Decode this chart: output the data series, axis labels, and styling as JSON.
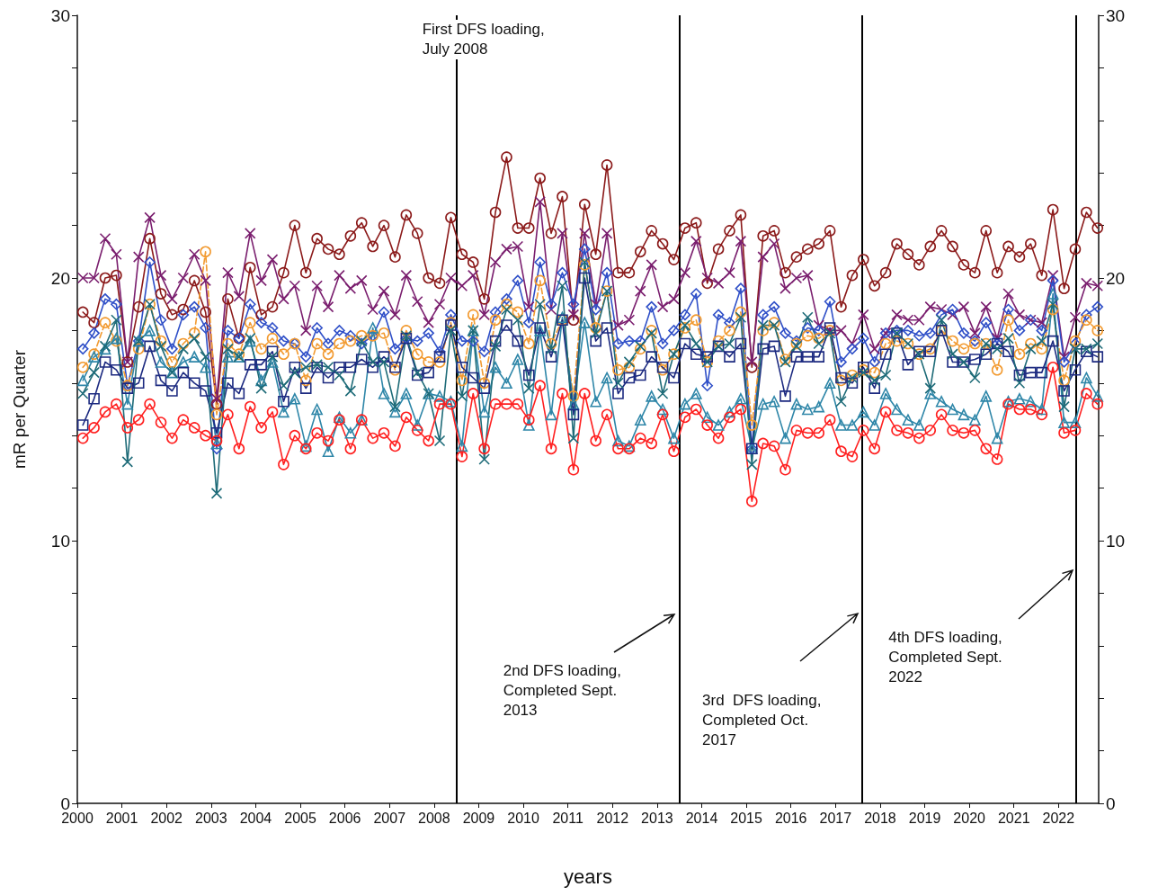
{
  "chart_data": {
    "type": "line",
    "xlabel": "years",
    "ylabel": "mR per Quarter",
    "x": [
      2000.125,
      2000.375,
      2000.625,
      2000.875,
      2001.125,
      2001.375,
      2001.625,
      2001.875,
      2002.125,
      2002.375,
      2002.625,
      2002.875,
      2003.125,
      2003.375,
      2003.625,
      2003.875,
      2004.125,
      2004.375,
      2004.625,
      2004.875,
      2005.125,
      2005.375,
      2005.625,
      2005.875,
      2006.125,
      2006.375,
      2006.625,
      2006.875,
      2007.125,
      2007.375,
      2007.625,
      2007.875,
      2008.125,
      2008.375,
      2008.625,
      2008.875,
      2009.125,
      2009.375,
      2009.625,
      2009.875,
      2010.125,
      2010.375,
      2010.625,
      2010.875,
      2011.125,
      2011.375,
      2011.625,
      2011.875,
      2012.125,
      2012.375,
      2012.625,
      2012.875,
      2013.125,
      2013.375,
      2013.625,
      2013.875,
      2014.125,
      2014.375,
      2014.625,
      2014.875,
      2015.125,
      2015.375,
      2015.625,
      2015.875,
      2016.125,
      2016.375,
      2016.625,
      2016.875,
      2017.125,
      2017.375,
      2017.625,
      2017.875,
      2018.125,
      2018.375,
      2018.625,
      2018.875,
      2019.125,
      2019.375,
      2019.625,
      2019.875,
      2020.125,
      2020.375,
      2020.625,
      2020.875,
      2021.125,
      2021.375,
      2021.625,
      2021.875,
      2022.125,
      2022.375,
      2022.625,
      2022.875
    ],
    "xlim": [
      2000,
      2022.9
    ],
    "xticks": [
      2000,
      2001,
      2002,
      2003,
      2004,
      2005,
      2006,
      2007,
      2008,
      2009,
      2010,
      2011,
      2012,
      2013,
      2014,
      2015,
      2016,
      2017,
      2018,
      2019,
      2020,
      2021,
      2022
    ],
    "ylim": [
      0,
      30
    ],
    "yticks": [
      0,
      {
        "value": 2,
        "label": null
      },
      {
        "value": 4,
        "label": null
      },
      {
        "value": 6,
        "label": null
      },
      {
        "value": 8,
        "label": null
      },
      10,
      {
        "value": 12,
        "label": null
      },
      {
        "value": 14,
        "label": null
      },
      {
        "value": 16,
        "label": null
      },
      {
        "value": 18,
        "label": null
      },
      20,
      {
        "value": 22,
        "label": null
      },
      {
        "value": 24,
        "label": null
      },
      {
        "value": 26,
        "label": null
      },
      {
        "value": 28,
        "label": null
      },
      30
    ],
    "y2lim": [
      0,
      30
    ],
    "y2ticks": [
      0,
      {
        "value": 2,
        "label": null
      },
      {
        "value": 4,
        "label": null
      },
      {
        "value": 6,
        "label": null
      },
      {
        "value": 8,
        "label": null
      },
      10,
      {
        "value": 12,
        "label": null
      },
      {
        "value": 14,
        "label": null
      },
      {
        "value": 16,
        "label": null
      },
      {
        "value": 18,
        "label": null
      },
      20,
      {
        "value": 22,
        "label": null
      },
      {
        "value": 24,
        "label": null
      },
      {
        "value": 26,
        "label": null
      },
      {
        "value": 28,
        "label": null
      },
      30
    ],
    "series": [
      {
        "color": "#8b1a1a",
        "marker": "circle",
        "values": [
          18.7,
          18.3,
          20.0,
          20.1,
          16.8,
          18.9,
          21.5,
          19.4,
          18.6,
          18.8,
          19.9,
          18.7,
          15.2,
          19.2,
          17.7,
          20.4,
          18.6,
          18.9,
          20.2,
          22.0,
          20.2,
          21.5,
          21.1,
          20.9,
          21.6,
          22.1,
          21.2,
          22.0,
          20.8,
          22.4,
          21.7,
          20.0,
          19.8,
          22.3,
          20.9,
          20.6,
          19.2,
          22.5,
          24.6,
          21.9,
          21.9,
          23.8,
          21.7,
          23.1,
          18.4,
          22.8,
          20.9,
          24.3,
          20.2,
          20.2,
          21.0,
          21.8,
          21.3,
          20.7,
          21.9,
          22.1,
          19.8,
          21.1,
          21.8,
          22.4,
          16.6,
          21.6,
          21.8,
          20.2,
          20.8,
          21.1,
          21.3,
          21.8,
          18.9,
          20.1,
          20.7,
          19.7,
          20.2,
          21.3,
          20.9,
          20.5,
          21.2,
          21.8,
          21.2,
          20.5,
          20.2,
          21.8,
          20.2,
          21.2,
          20.8,
          21.3,
          20.1,
          22.6,
          19.6,
          21.1,
          22.5,
          21.9
        ]
      },
      {
        "color": "#7a1e6e",
        "marker": "cross",
        "values": [
          20.0,
          20.0,
          21.5,
          20.9,
          16.8,
          20.8,
          22.3,
          20.1,
          19.2,
          20.0,
          20.9,
          19.9,
          15.4,
          20.2,
          19.3,
          21.7,
          19.9,
          20.7,
          19.2,
          19.7,
          18.0,
          19.7,
          18.9,
          20.1,
          19.6,
          19.9,
          18.8,
          19.5,
          18.6,
          20.1,
          19.1,
          18.3,
          19.0,
          20.0,
          19.7,
          20.1,
          18.6,
          20.6,
          21.1,
          21.2,
          18.9,
          22.9,
          18.8,
          21.7,
          18.6,
          21.7,
          19.0,
          21.7,
          18.2,
          18.4,
          19.5,
          20.5,
          18.9,
          19.2,
          20.2,
          21.4,
          20.0,
          19.8,
          20.2,
          21.4,
          16.8,
          20.8,
          21.3,
          19.6,
          20.0,
          20.1,
          18.2,
          18.0,
          18.0,
          17.5,
          18.6,
          17.3,
          17.9,
          18.6,
          18.4,
          18.4,
          18.9,
          18.8,
          18.6,
          18.9,
          17.9,
          18.9,
          17.7,
          19.4,
          18.6,
          18.4,
          18.3,
          20.1,
          17.0,
          18.5,
          19.8,
          19.7
        ]
      },
      {
        "color": "#3050c8",
        "marker": "diamond",
        "values": [
          17.3,
          17.9,
          19.2,
          19.0,
          15.9,
          17.6,
          20.6,
          18.4,
          17.3,
          18.6,
          18.9,
          18.1,
          13.5,
          18.0,
          17.7,
          19.0,
          18.3,
          18.1,
          17.6,
          17.5,
          17.0,
          18.1,
          17.5,
          18.0,
          17.8,
          17.5,
          17.8,
          18.7,
          17.3,
          17.7,
          17.6,
          17.9,
          17.2,
          18.6,
          17.6,
          17.6,
          17.2,
          18.7,
          19.2,
          19.9,
          18.3,
          20.6,
          19.0,
          20.2,
          19.0,
          21.1,
          18.8,
          20.2,
          17.5,
          17.6,
          17.6,
          18.9,
          17.5,
          18.0,
          18.6,
          19.4,
          15.9,
          18.6,
          18.3,
          19.6,
          13.5,
          18.6,
          18.9,
          17.9,
          17.6,
          18.1,
          18.0,
          19.1,
          16.8,
          17.3,
          17.7,
          16.8,
          17.9,
          18.0,
          18.0,
          17.8,
          17.9,
          18.6,
          18.8,
          17.9,
          17.6,
          18.3,
          17.5,
          18.8,
          18.0,
          18.4,
          18.0,
          19.9,
          16.8,
          17.5,
          18.6,
          18.9
        ]
      },
      {
        "color": "#f29a30",
        "marker": "circle",
        "line_style": "dashed",
        "values": [
          16.6,
          17.1,
          18.3,
          17.6,
          15.9,
          17.3,
          19.0,
          17.6,
          16.8,
          17.5,
          17.9,
          21.0,
          14.8,
          17.5,
          17.1,
          18.3,
          17.3,
          17.7,
          17.1,
          17.5,
          16.1,
          17.5,
          17.1,
          17.5,
          17.6,
          17.8,
          17.8,
          17.9,
          16.5,
          18.0,
          17.1,
          16.8,
          16.8,
          18.3,
          16.1,
          18.6,
          16.0,
          18.4,
          19.0,
          18.7,
          17.5,
          19.9,
          17.5,
          18.4,
          15.5,
          20.5,
          18.1,
          19.5,
          16.5,
          16.6,
          17.3,
          18.0,
          16.5,
          17.1,
          18.1,
          18.4,
          16.8,
          17.6,
          18.0,
          18.7,
          14.4,
          18.0,
          18.3,
          16.9,
          17.5,
          17.8,
          17.7,
          18.0,
          16.1,
          16.3,
          16.5,
          16.4,
          17.5,
          17.6,
          17.5,
          17.1,
          17.3,
          18.0,
          17.6,
          17.3,
          17.5,
          17.5,
          16.5,
          18.4,
          17.1,
          17.5,
          17.3,
          18.8,
          16.1,
          17.6,
          18.4,
          18.0
        ]
      },
      {
        "color": "#2e86a8",
        "marker": "triangle",
        "values": [
          16.1,
          17.0,
          17.3,
          17.7,
          15.2,
          17.6,
          18.0,
          16.8,
          16.4,
          16.8,
          17.0,
          16.6,
          13.7,
          17.0,
          17.0,
          17.6,
          16.1,
          16.8,
          14.9,
          15.4,
          13.6,
          15.0,
          13.4,
          14.7,
          14.1,
          14.6,
          18.1,
          15.6,
          14.9,
          15.6,
          14.4,
          15.6,
          15.5,
          15.3,
          13.6,
          18.0,
          14.9,
          16.6,
          16.0,
          16.9,
          14.4,
          18.0,
          14.8,
          18.5,
          15.2,
          18.3,
          15.3,
          16.2,
          13.8,
          13.6,
          14.6,
          15.5,
          15.0,
          13.9,
          15.2,
          15.6,
          14.7,
          14.4,
          14.9,
          15.4,
          13.5,
          15.2,
          15.3,
          13.9,
          15.2,
          15.0,
          15.1,
          16.0,
          14.4,
          14.4,
          14.9,
          14.4,
          15.6,
          15.0,
          14.6,
          14.4,
          15.6,
          15.3,
          15.0,
          14.8,
          14.6,
          15.5,
          13.9,
          15.3,
          15.4,
          15.3,
          15.0,
          19.4,
          14.5,
          14.5,
          16.2,
          15.5
        ]
      },
      {
        "color": "#1c2a80",
        "marker": "square",
        "values": [
          14.4,
          15.4,
          16.8,
          16.5,
          15.8,
          16.0,
          17.4,
          16.1,
          15.7,
          16.4,
          16.0,
          15.7,
          14.1,
          16.0,
          15.6,
          16.7,
          16.7,
          17.2,
          15.3,
          16.6,
          15.8,
          16.6,
          16.2,
          16.6,
          16.6,
          16.9,
          16.6,
          17.0,
          16.6,
          17.7,
          16.3,
          16.4,
          17.0,
          18.2,
          16.6,
          16.2,
          15.8,
          17.6,
          18.2,
          17.6,
          16.3,
          18.1,
          17.0,
          18.4,
          14.8,
          20.0,
          17.6,
          18.1,
          15.6,
          16.2,
          16.3,
          17.0,
          16.6,
          16.2,
          17.5,
          17.1,
          17.0,
          17.4,
          17.0,
          17.5,
          13.5,
          17.3,
          17.4,
          15.5,
          17.0,
          17.0,
          17.0,
          18.1,
          16.2,
          16.0,
          16.6,
          15.8,
          17.1,
          17.9,
          16.7,
          17.2,
          17.2,
          18.0,
          16.8,
          16.8,
          16.9,
          17.1,
          17.5,
          17.2,
          16.3,
          16.4,
          16.4,
          17.6,
          15.7,
          16.5,
          17.2,
          17.0
        ]
      },
      {
        "color": "#1e6b78",
        "marker": "cross",
        "values": [
          15.6,
          16.4,
          17.4,
          18.4,
          13.0,
          17.6,
          19.0,
          17.4,
          16.4,
          17.3,
          17.7,
          17.0,
          11.8,
          17.3,
          17.0,
          17.7,
          15.8,
          17.0,
          15.9,
          16.4,
          16.6,
          16.7,
          16.6,
          16.3,
          15.7,
          17.6,
          16.8,
          16.8,
          15.1,
          17.8,
          16.4,
          15.6,
          13.8,
          18.0,
          15.5,
          18.0,
          13.1,
          17.4,
          18.8,
          18.4,
          15.8,
          19.0,
          17.3,
          19.7,
          13.9,
          20.6,
          17.9,
          19.5,
          16.0,
          16.8,
          17.4,
          17.9,
          15.6,
          17.1,
          18.2,
          17.5,
          16.8,
          17.4,
          17.5,
          18.5,
          12.9,
          18.2,
          18.2,
          16.8,
          17.4,
          18.5,
          17.5,
          17.9,
          15.3,
          16.2,
          16.4,
          16.1,
          16.3,
          17.9,
          17.5,
          17.1,
          15.8,
          18.4,
          17.1,
          16.8,
          16.2,
          17.5,
          17.3,
          17.7,
          16.0,
          17.3,
          17.6,
          19.0,
          15.1,
          17.3,
          17.3,
          17.5
        ]
      },
      {
        "color": "#ff2020",
        "marker": "circle",
        "values": [
          13.9,
          14.3,
          14.9,
          15.2,
          14.3,
          14.6,
          15.2,
          14.5,
          13.9,
          14.6,
          14.3,
          14.0,
          13.8,
          14.8,
          13.5,
          15.1,
          14.3,
          14.9,
          12.9,
          14.0,
          13.5,
          14.1,
          13.8,
          14.6,
          13.5,
          14.6,
          13.9,
          14.1,
          13.6,
          14.7,
          14.2,
          13.8,
          15.2,
          15.2,
          13.2,
          15.6,
          13.5,
          15.2,
          15.2,
          15.2,
          14.6,
          15.9,
          13.5,
          15.6,
          12.7,
          15.6,
          13.8,
          14.8,
          13.5,
          13.5,
          13.9,
          13.7,
          14.8,
          13.4,
          14.7,
          15.0,
          14.4,
          13.9,
          14.7,
          15.0,
          11.5,
          13.7,
          13.6,
          12.7,
          14.2,
          14.1,
          14.1,
          14.6,
          13.4,
          13.2,
          14.2,
          13.5,
          14.9,
          14.2,
          14.1,
          13.9,
          14.2,
          14.8,
          14.2,
          14.1,
          14.2,
          13.5,
          13.1,
          15.2,
          15.0,
          15.0,
          14.8,
          16.6,
          14.1,
          14.2,
          15.6,
          15.2
        ]
      }
    ],
    "ref_lines": [
      {
        "axis": "x",
        "value": 2008.5,
        "label": "First DFS loading, July 2008",
        "color": "#000000"
      },
      {
        "axis": "x",
        "value": 2013.5,
        "label": "2nd DFS loading, Completed Sept. 2013",
        "color": "#000000"
      },
      {
        "axis": "x",
        "value": 2017.6,
        "label": "3rd  DFS loading, Completed Oct. 2017",
        "color": "#000000"
      },
      {
        "axis": "x",
        "value": 2022.4,
        "label": "4th DFS loading, Completed Sept. 2022",
        "color": "#000000"
      }
    ]
  }
}
